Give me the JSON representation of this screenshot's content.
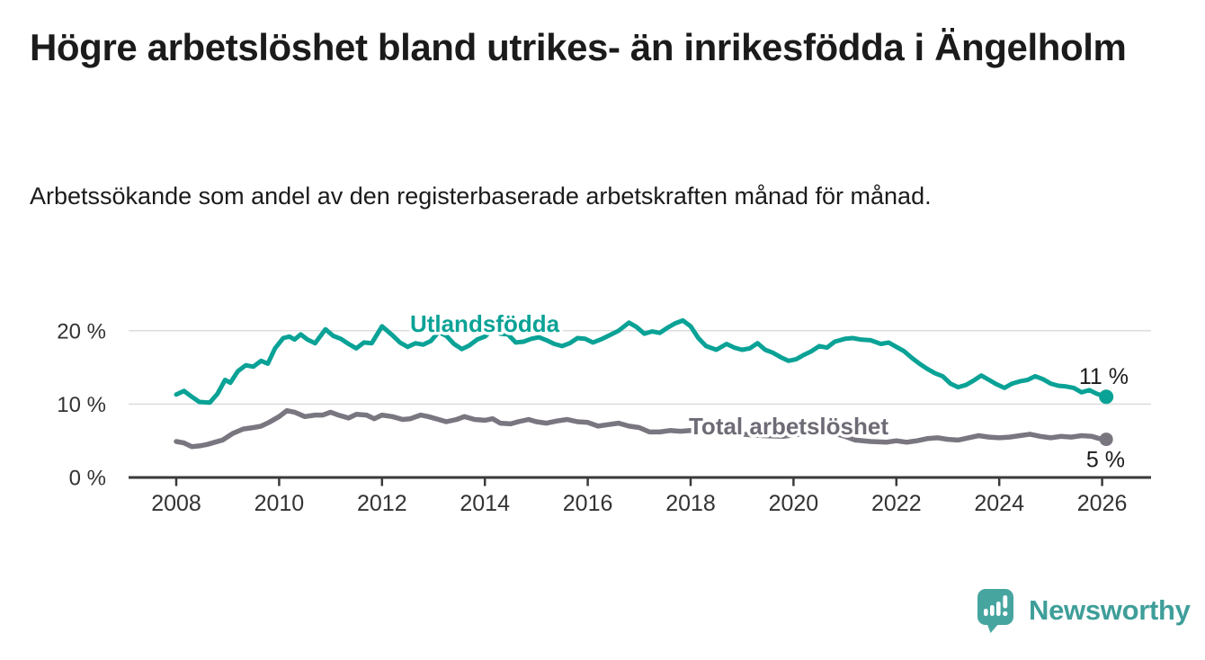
{
  "header": {
    "title": "Högre arbetslöshet bland utrikes- än inrikesfödda i Ängelholm",
    "subtitle": "Arbetssökande som andel av den registerbaserade arbetskraften månad för månad."
  },
  "chart_data": {
    "type": "line",
    "title": "Högre arbetslöshet bland utrikes- än inrikesfödda i Ängelholm",
    "subtitle": "Arbetssökande som andel av den registerbaserade arbetskraften månad för månad.",
    "unit": "%",
    "grid": "horizontal",
    "legend_position": "inline-labels",
    "colors": {
      "grid": "#dcdcdc",
      "axis": "#3a3a3a",
      "tick_text": "#333333",
      "end_label_text": "#1b1b1b",
      "halo": "#ffffff"
    },
    "x_axis": {
      "range": [
        2007.85,
        2026.6
      ],
      "ticks": [
        {
          "value": 2008,
          "label": "2008"
        },
        {
          "value": 2010,
          "label": "2010"
        },
        {
          "value": 2012,
          "label": "2012"
        },
        {
          "value": 2014,
          "label": "2014"
        },
        {
          "value": 2016,
          "label": "2016"
        },
        {
          "value": 2018,
          "label": "2018"
        },
        {
          "value": 2020,
          "label": "2020"
        },
        {
          "value": 2022,
          "label": "2022"
        },
        {
          "value": 2024,
          "label": "2024"
        },
        {
          "value": 2026,
          "label": "2026"
        }
      ]
    },
    "y_axis": {
      "range": [
        0,
        22
      ],
      "ticks": [
        {
          "value": 0,
          "label": "0 %"
        },
        {
          "value": 10,
          "label": "10 %"
        },
        {
          "value": 20,
          "label": "20 %"
        }
      ]
    },
    "series": [
      {
        "name": "Utlandsfödda",
        "color": "#0aa296",
        "label_color": "#0aa296",
        "end_label": "11 %",
        "end_value": 11,
        "points": [
          [
            2008.0,
            11.3
          ],
          [
            2008.15,
            11.8
          ],
          [
            2008.3,
            11.0
          ],
          [
            2008.45,
            10.3
          ],
          [
            2008.65,
            10.2
          ],
          [
            2008.8,
            11.4
          ],
          [
            2008.95,
            13.3
          ],
          [
            2009.05,
            12.9
          ],
          [
            2009.2,
            14.5
          ],
          [
            2009.35,
            15.3
          ],
          [
            2009.5,
            15.1
          ],
          [
            2009.65,
            15.9
          ],
          [
            2009.78,
            15.5
          ],
          [
            2009.92,
            17.6
          ],
          [
            2010.08,
            19.0
          ],
          [
            2010.2,
            19.2
          ],
          [
            2010.3,
            18.8
          ],
          [
            2010.42,
            19.5
          ],
          [
            2010.55,
            18.8
          ],
          [
            2010.7,
            18.3
          ],
          [
            2010.9,
            20.2
          ],
          [
            2011.05,
            19.3
          ],
          [
            2011.2,
            18.9
          ],
          [
            2011.35,
            18.2
          ],
          [
            2011.5,
            17.6
          ],
          [
            2011.65,
            18.4
          ],
          [
            2011.8,
            18.3
          ],
          [
            2012.0,
            20.6
          ],
          [
            2012.2,
            19.4
          ],
          [
            2012.35,
            18.4
          ],
          [
            2012.5,
            17.8
          ],
          [
            2012.65,
            18.3
          ],
          [
            2012.8,
            18.1
          ],
          [
            2012.95,
            18.6
          ],
          [
            2013.1,
            19.8
          ],
          [
            2013.25,
            19.3
          ],
          [
            2013.4,
            18.2
          ],
          [
            2013.55,
            17.5
          ],
          [
            2013.7,
            18.0
          ],
          [
            2013.85,
            18.8
          ],
          [
            2014.0,
            19.2
          ],
          [
            2014.15,
            20.2
          ],
          [
            2014.3,
            19.6
          ],
          [
            2014.45,
            19.5
          ],
          [
            2014.6,
            18.4
          ],
          [
            2014.75,
            18.5
          ],
          [
            2014.9,
            18.9
          ],
          [
            2015.05,
            19.1
          ],
          [
            2015.2,
            18.7
          ],
          [
            2015.35,
            18.2
          ],
          [
            2015.5,
            17.9
          ],
          [
            2015.65,
            18.3
          ],
          [
            2015.8,
            19.0
          ],
          [
            2015.95,
            18.9
          ],
          [
            2016.1,
            18.4
          ],
          [
            2016.25,
            18.8
          ],
          [
            2016.4,
            19.3
          ],
          [
            2016.6,
            20.0
          ],
          [
            2016.8,
            21.1
          ],
          [
            2016.95,
            20.5
          ],
          [
            2017.1,
            19.6
          ],
          [
            2017.25,
            19.9
          ],
          [
            2017.4,
            19.7
          ],
          [
            2017.55,
            20.4
          ],
          [
            2017.7,
            21.0
          ],
          [
            2017.85,
            21.4
          ],
          [
            2018.0,
            20.6
          ],
          [
            2018.15,
            19.0
          ],
          [
            2018.3,
            17.9
          ],
          [
            2018.5,
            17.4
          ],
          [
            2018.7,
            18.2
          ],
          [
            2018.85,
            17.7
          ],
          [
            2019.0,
            17.4
          ],
          [
            2019.15,
            17.6
          ],
          [
            2019.3,
            18.3
          ],
          [
            2019.45,
            17.4
          ],
          [
            2019.6,
            17.0
          ],
          [
            2019.75,
            16.4
          ],
          [
            2019.9,
            15.9
          ],
          [
            2020.05,
            16.1
          ],
          [
            2020.2,
            16.7
          ],
          [
            2020.35,
            17.2
          ],
          [
            2020.5,
            17.9
          ],
          [
            2020.65,
            17.7
          ],
          [
            2020.8,
            18.5
          ],
          [
            2021.0,
            18.9
          ],
          [
            2021.15,
            19.0
          ],
          [
            2021.3,
            18.8
          ],
          [
            2021.5,
            18.7
          ],
          [
            2021.7,
            18.2
          ],
          [
            2021.85,
            18.4
          ],
          [
            2022.0,
            17.8
          ],
          [
            2022.15,
            17.2
          ],
          [
            2022.3,
            16.3
          ],
          [
            2022.45,
            15.5
          ],
          [
            2022.6,
            14.8
          ],
          [
            2022.75,
            14.2
          ],
          [
            2022.9,
            13.8
          ],
          [
            2023.05,
            12.8
          ],
          [
            2023.2,
            12.3
          ],
          [
            2023.35,
            12.6
          ],
          [
            2023.5,
            13.2
          ],
          [
            2023.65,
            13.9
          ],
          [
            2023.8,
            13.3
          ],
          [
            2023.95,
            12.7
          ],
          [
            2024.1,
            12.2
          ],
          [
            2024.25,
            12.8
          ],
          [
            2024.4,
            13.1
          ],
          [
            2024.55,
            13.3
          ],
          [
            2024.7,
            13.8
          ],
          [
            2024.85,
            13.4
          ],
          [
            2025.0,
            12.8
          ],
          [
            2025.15,
            12.5
          ],
          [
            2025.3,
            12.4
          ],
          [
            2025.45,
            12.2
          ],
          [
            2025.6,
            11.6
          ],
          [
            2025.75,
            11.9
          ],
          [
            2025.9,
            11.4
          ],
          [
            2026.08,
            11.0
          ]
        ]
      },
      {
        "name": "Total arbetslöshet",
        "color": "#7a7680",
        "label_color": "#6f6b76",
        "end_label": "5 %",
        "end_value": 5,
        "points": [
          [
            2008.0,
            4.9
          ],
          [
            2008.15,
            4.7
          ],
          [
            2008.3,
            4.2
          ],
          [
            2008.45,
            4.3
          ],
          [
            2008.6,
            4.5
          ],
          [
            2008.75,
            4.8
          ],
          [
            2008.9,
            5.1
          ],
          [
            2009.1,
            6.0
          ],
          [
            2009.3,
            6.6
          ],
          [
            2009.5,
            6.8
          ],
          [
            2009.65,
            7.0
          ],
          [
            2009.8,
            7.5
          ],
          [
            2010.0,
            8.3
          ],
          [
            2010.15,
            9.1
          ],
          [
            2010.3,
            8.9
          ],
          [
            2010.5,
            8.3
          ],
          [
            2010.7,
            8.5
          ],
          [
            2010.85,
            8.5
          ],
          [
            2011.0,
            8.9
          ],
          [
            2011.15,
            8.5
          ],
          [
            2011.35,
            8.1
          ],
          [
            2011.5,
            8.6
          ],
          [
            2011.7,
            8.5
          ],
          [
            2011.85,
            8.0
          ],
          [
            2012.0,
            8.5
          ],
          [
            2012.2,
            8.3
          ],
          [
            2012.4,
            7.9
          ],
          [
            2012.55,
            8.0
          ],
          [
            2012.75,
            8.5
          ],
          [
            2012.9,
            8.3
          ],
          [
            2013.1,
            7.9
          ],
          [
            2013.25,
            7.6
          ],
          [
            2013.45,
            7.9
          ],
          [
            2013.6,
            8.3
          ],
          [
            2013.8,
            7.9
          ],
          [
            2014.0,
            7.8
          ],
          [
            2014.15,
            8.0
          ],
          [
            2014.3,
            7.4
          ],
          [
            2014.5,
            7.3
          ],
          [
            2014.65,
            7.6
          ],
          [
            2014.85,
            7.9
          ],
          [
            2015.0,
            7.6
          ],
          [
            2015.2,
            7.4
          ],
          [
            2015.4,
            7.7
          ],
          [
            2015.6,
            7.9
          ],
          [
            2015.8,
            7.6
          ],
          [
            2016.0,
            7.5
          ],
          [
            2016.2,
            7.0
          ],
          [
            2016.4,
            7.2
          ],
          [
            2016.6,
            7.4
          ],
          [
            2016.8,
            7.0
          ],
          [
            2017.0,
            6.8
          ],
          [
            2017.2,
            6.2
          ],
          [
            2017.4,
            6.2
          ],
          [
            2017.6,
            6.4
          ],
          [
            2017.8,
            6.3
          ],
          [
            2018.0,
            6.4
          ],
          [
            2018.3,
            6.2
          ],
          [
            2018.6,
            6.0
          ],
          [
            2019.0,
            5.9
          ],
          [
            2019.4,
            5.7
          ],
          [
            2019.8,
            5.6
          ],
          [
            2020.1,
            5.9
          ],
          [
            2020.4,
            6.3
          ],
          [
            2020.7,
            6.2
          ],
          [
            2021.0,
            5.6
          ],
          [
            2021.2,
            5.1
          ],
          [
            2021.5,
            4.9
          ],
          [
            2021.8,
            4.8
          ],
          [
            2022.0,
            5.0
          ],
          [
            2022.2,
            4.8
          ],
          [
            2022.4,
            5.0
          ],
          [
            2022.6,
            5.3
          ],
          [
            2022.8,
            5.4
          ],
          [
            2023.0,
            5.2
          ],
          [
            2023.2,
            5.1
          ],
          [
            2023.4,
            5.4
          ],
          [
            2023.6,
            5.7
          ],
          [
            2023.8,
            5.5
          ],
          [
            2024.0,
            5.4
          ],
          [
            2024.2,
            5.5
          ],
          [
            2024.4,
            5.7
          ],
          [
            2024.6,
            5.9
          ],
          [
            2024.8,
            5.6
          ],
          [
            2025.0,
            5.4
          ],
          [
            2025.2,
            5.6
          ],
          [
            2025.4,
            5.5
          ],
          [
            2025.6,
            5.7
          ],
          [
            2025.8,
            5.6
          ],
          [
            2025.95,
            5.3
          ],
          [
            2026.08,
            5.2
          ]
        ]
      }
    ]
  },
  "footer": {
    "brand": "Newsworthy",
    "brand_color": "#3f9e99",
    "icon": "newsworthy-speech-bubble-bar-chart-icon",
    "icon_color": "#47a5a0"
  }
}
